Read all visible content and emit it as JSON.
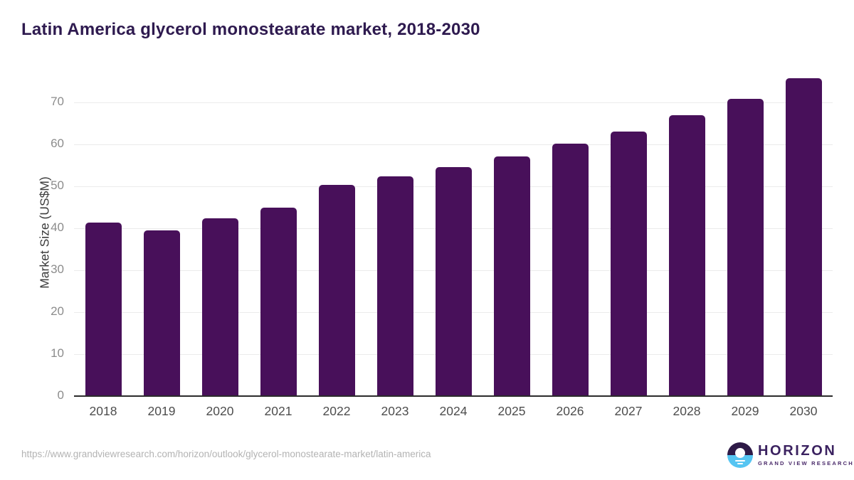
{
  "page": {
    "title": "Latin America glycerol monostearate market, 2018-2030",
    "source_url": "https://www.grandviewresearch.com/horizon/outlook/glycerol-monostearate-market/latin-america",
    "logo": {
      "name": "HORIZON",
      "subtitle": "GRAND VIEW RESEARCH"
    }
  },
  "chart_data": {
    "type": "bar",
    "title": "Latin America glycerol monostearate market, 2018-2030",
    "categories": [
      "2018",
      "2019",
      "2020",
      "2021",
      "2022",
      "2023",
      "2024",
      "2025",
      "2026",
      "2027",
      "2028",
      "2029",
      "2030"
    ],
    "values": [
      41.3,
      39.5,
      42.4,
      44.9,
      50.4,
      52.3,
      54.6,
      57.2,
      60.2,
      63.1,
      67.0,
      70.8,
      75.7
    ],
    "xlabel": "",
    "ylabel": "Market Size (US$M)",
    "ylim": [
      0,
      78
    ],
    "yticks": [
      0,
      10,
      20,
      30,
      40,
      50,
      60,
      70
    ],
    "grid": "horizontal",
    "legend": "none",
    "bar_color": "#48105a"
  },
  "colors": {
    "title": "#2e1a4f",
    "bar": "#48105a",
    "gridline": "#ebebeb",
    "axis_line": "#2b2b2b",
    "tick_label": "#8c8c8c",
    "x_label": "#4d4d4d",
    "url_text": "#b3b3b3",
    "logo_purple": "#2e1a47",
    "logo_blue": "#56c5f2"
  }
}
